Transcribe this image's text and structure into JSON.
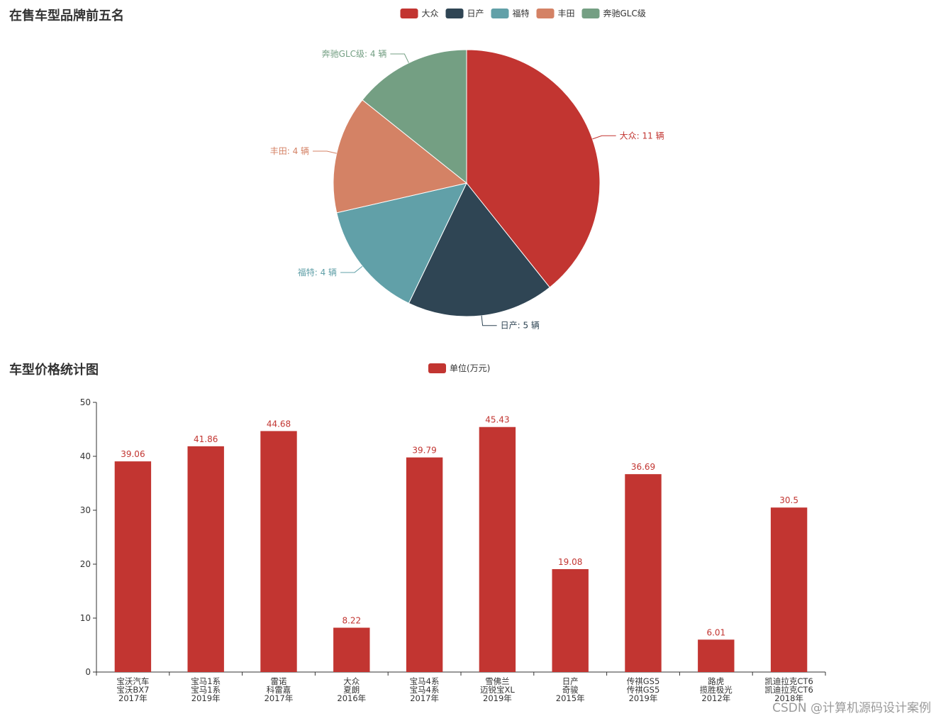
{
  "chart_data": [
    {
      "type": "pie",
      "title": "在售车型品牌前五名",
      "legend_position": "top-center",
      "unit": "辆",
      "slices": [
        {
          "name": "大众",
          "value": 11,
          "color": "#c23531"
        },
        {
          "name": "日产",
          "value": 5,
          "color": "#2f4554"
        },
        {
          "name": "福特",
          "value": 4,
          "color": "#61a0a8"
        },
        {
          "name": "丰田",
          "value": 4,
          "color": "#d48265"
        },
        {
          "name": "奔驰GLC级",
          "value": 4,
          "color": "#749f83"
        }
      ]
    },
    {
      "type": "bar",
      "title": "车型价格统计图",
      "legend_position": "top-center",
      "series": [
        {
          "name": "单位(万元)",
          "color": "#c23531",
          "values": [
            39.06,
            41.86,
            44.68,
            8.22,
            39.79,
            45.43,
            19.08,
            36.69,
            6.01,
            30.5
          ]
        }
      ],
      "categories": [
        [
          "宝沃汽车",
          "宝沃BX7",
          "2017年"
        ],
        [
          "宝马1系",
          "宝马1系",
          "2019年"
        ],
        [
          "雷诺",
          "科雷嘉",
          "2017年"
        ],
        [
          "大众",
          "夏朗",
          "2016年"
        ],
        [
          "宝马4系",
          "宝马4系",
          "2017年"
        ],
        [
          "雪佛兰",
          "迈锐宝XL",
          "2019年"
        ],
        [
          "日产",
          "奇骏",
          "2015年"
        ],
        [
          "传祺GS5",
          "传祺GS5",
          "2019年"
        ],
        [
          "路虎",
          "揽胜极光",
          "2012年"
        ],
        [
          "凯迪拉克CT6",
          "凯迪拉克CT6",
          "2018年"
        ]
      ],
      "ylim": [
        0,
        50
      ],
      "yticks": [
        0,
        10,
        20,
        30,
        40,
        50
      ],
      "xlabel": "",
      "ylabel": ""
    }
  ],
  "watermark": "CSDN @计算机源码设计案例"
}
